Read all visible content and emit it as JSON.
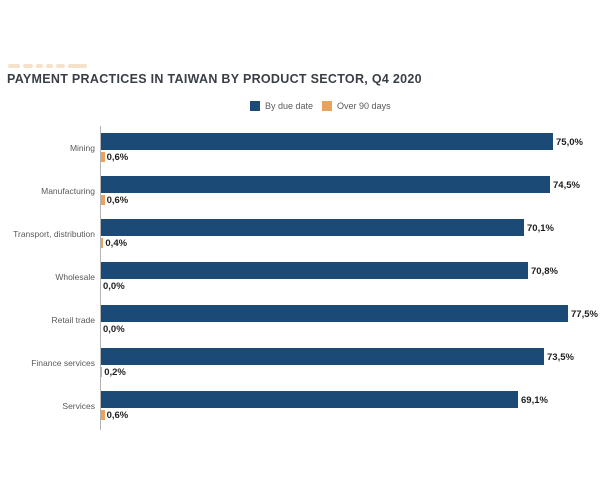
{
  "title": "PAYMENT PRACTICES IN TAIWAN BY PRODUCT SECTOR, Q4 2020",
  "legend": {
    "items": [
      {
        "label": "By due date",
        "color": "#1C4A77"
      },
      {
        "label": "Over 90 days",
        "color": "#E8A45F"
      }
    ]
  },
  "chart_data": {
    "type": "bar",
    "orientation": "horizontal",
    "title": "PAYMENT PRACTICES IN TAIWAN BY PRODUCT SECTOR, Q4 2020",
    "categories": [
      "Mining",
      "Manufacturing",
      "Transport, distribution",
      "Wholesale",
      "Retail trade",
      "Finance services",
      "Services"
    ],
    "series": [
      {
        "name": "By due date",
        "color": "#1C4A77",
        "values": [
          75.0,
          74.5,
          70.1,
          70.8,
          77.5,
          73.5,
          69.1
        ],
        "value_labels": [
          "75,0%",
          "74,5%",
          "70,1%",
          "70,8%",
          "77,5%",
          "73,5%",
          "69,1%"
        ]
      },
      {
        "name": "Over 90 days",
        "color": "#E8A45F",
        "values": [
          0.6,
          0.6,
          0.4,
          0.0,
          0.0,
          0.2,
          0.6
        ],
        "value_labels": [
          "0,6%",
          "0,6%",
          "0,4%",
          "0,0%",
          "0,0%",
          "0,2%",
          "0,6%"
        ]
      }
    ],
    "xlim": [
      0,
      80
    ],
    "grid": false,
    "legend_position": "top-center",
    "value_format": "comma-decimal-percent"
  },
  "colors": {
    "axis_line": "#B3B3B3",
    "category_label": "#595959",
    "value_label": "#1F1F1F",
    "title_text": "#3A3F47",
    "watermark": "#F6E2CB"
  }
}
